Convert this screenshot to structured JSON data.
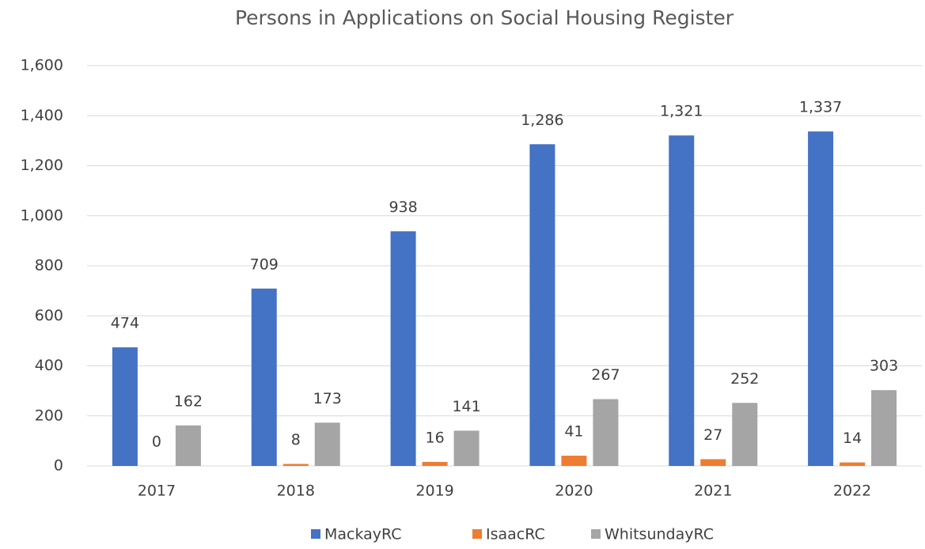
{
  "chart_data": {
    "type": "bar",
    "title": "Persons in Applications on Social Housing Register",
    "categories": [
      "2017",
      "2018",
      "2019",
      "2020",
      "2021",
      "2022"
    ],
    "series": [
      {
        "name": "MackayRC",
        "color": "#4472c4",
        "values": [
          474,
          709,
          938,
          1286,
          1321,
          1337
        ],
        "value_labels": [
          "474",
          "709",
          "938",
          "1,286",
          "1,321",
          "1,337"
        ]
      },
      {
        "name": "IsaacRC",
        "color": "#ed7d31",
        "values": [
          0,
          8,
          16,
          41,
          27,
          14
        ]
      },
      {
        "name": "WhitsundayRC",
        "color": "#a5a5a5",
        "values": [
          162,
          173,
          141,
          267,
          252,
          303
        ]
      }
    ],
    "ylim": [
      0,
      1600
    ],
    "yticks": [
      0,
      200,
      400,
      600,
      800,
      {
        "value": 1000,
        "label": "1,000"
      },
      {
        "value": 1200,
        "label": "1,200"
      },
      {
        "value": 1400,
        "label": "1,400"
      },
      {
        "value": 1600,
        "label": "1,600"
      }
    ],
    "grid": true,
    "legend": "bottom"
  }
}
